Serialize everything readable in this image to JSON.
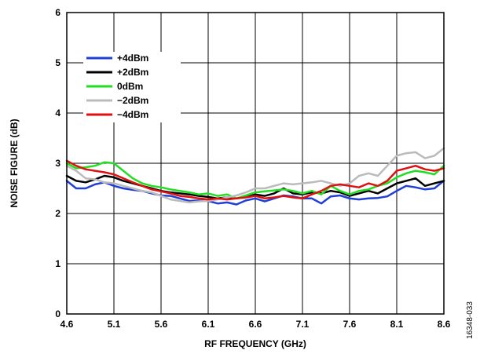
{
  "chart_data": {
    "type": "line",
    "xlabel": "RF FREQUENCY (GHz)",
    "ylabel": "NOISE FIGURE (dB)",
    "xlim": [
      4.6,
      8.6
    ],
    "ylim": [
      0,
      6
    ],
    "xticks": [
      "4.6",
      "5.1",
      "5.6",
      "6.1",
      "6.6",
      "7.1",
      "7.6",
      "8.1",
      "8.6"
    ],
    "yticks": [
      "0",
      "1",
      "2",
      "3",
      "4",
      "5",
      "6"
    ],
    "grid": true,
    "legend_position": "top-left",
    "x": [
      4.6,
      4.7,
      4.8,
      4.9,
      5.0,
      5.1,
      5.2,
      5.3,
      5.4,
      5.5,
      5.6,
      5.7,
      5.8,
      5.9,
      6.0,
      6.1,
      6.2,
      6.3,
      6.4,
      6.5,
      6.6,
      6.7,
      6.8,
      6.9,
      7.0,
      7.1,
      7.2,
      7.3,
      7.4,
      7.5,
      7.6,
      7.7,
      7.8,
      7.9,
      8.0,
      8.1,
      8.2,
      8.3,
      8.4,
      8.5,
      8.6
    ],
    "series": [
      {
        "name": "+4dBm",
        "color": "#1f3fd6",
        "values": [
          2.65,
          2.5,
          2.5,
          2.58,
          2.62,
          2.55,
          2.5,
          2.47,
          2.45,
          2.4,
          2.36,
          2.35,
          2.3,
          2.25,
          2.26,
          2.25,
          2.2,
          2.22,
          2.18,
          2.26,
          2.3,
          2.24,
          2.3,
          2.36,
          2.34,
          2.3,
          2.3,
          2.2,
          2.34,
          2.36,
          2.3,
          2.28,
          2.3,
          2.31,
          2.34,
          2.45,
          2.55,
          2.52,
          2.48,
          2.5,
          2.65
        ]
      },
      {
        "name": "+2dBm",
        "color": "#000000",
        "values": [
          2.75,
          2.65,
          2.62,
          2.68,
          2.75,
          2.72,
          2.65,
          2.6,
          2.55,
          2.5,
          2.45,
          2.42,
          2.4,
          2.38,
          2.35,
          2.33,
          2.3,
          2.32,
          2.3,
          2.34,
          2.38,
          2.35,
          2.4,
          2.5,
          2.4,
          2.38,
          2.42,
          2.4,
          2.45,
          2.42,
          2.35,
          2.4,
          2.45,
          2.4,
          2.5,
          2.6,
          2.65,
          2.7,
          2.55,
          2.6,
          2.65
        ]
      },
      {
        "name": "0dBm",
        "color": "#22dd22",
        "values": [
          3.0,
          2.9,
          2.92,
          2.95,
          3.02,
          3.0,
          2.85,
          2.7,
          2.6,
          2.55,
          2.52,
          2.48,
          2.45,
          2.42,
          2.38,
          2.4,
          2.35,
          2.38,
          2.3,
          2.36,
          2.42,
          2.44,
          2.46,
          2.48,
          2.45,
          2.4,
          2.45,
          2.38,
          2.55,
          2.45,
          2.38,
          2.45,
          2.48,
          2.55,
          2.6,
          2.72,
          2.8,
          2.85,
          2.82,
          2.78,
          2.95
        ]
      },
      {
        "name": "−2dBm",
        "color": "#bbbbbb",
        "values": [
          2.95,
          2.85,
          2.7,
          2.68,
          2.62,
          2.6,
          2.55,
          2.5,
          2.45,
          2.42,
          2.35,
          2.28,
          2.25,
          2.22,
          2.24,
          2.25,
          2.28,
          2.32,
          2.36,
          2.42,
          2.5,
          2.5,
          2.55,
          2.6,
          2.58,
          2.6,
          2.62,
          2.65,
          2.6,
          2.55,
          2.6,
          2.75,
          2.8,
          2.75,
          2.95,
          3.15,
          3.2,
          3.22,
          3.1,
          3.15,
          3.3
        ]
      },
      {
        "name": "−4dBm",
        "color": "#dd1111",
        "values": [
          3.05,
          2.95,
          2.88,
          2.85,
          2.82,
          2.78,
          2.7,
          2.62,
          2.55,
          2.48,
          2.44,
          2.4,
          2.35,
          2.33,
          2.3,
          2.28,
          2.3,
          2.28,
          2.3,
          2.32,
          2.35,
          2.3,
          2.32,
          2.35,
          2.32,
          2.3,
          2.38,
          2.45,
          2.55,
          2.58,
          2.55,
          2.52,
          2.6,
          2.55,
          2.65,
          2.85,
          2.9,
          2.95,
          2.88,
          2.85,
          2.9
        ]
      }
    ]
  },
  "figure_code": "16348-033"
}
